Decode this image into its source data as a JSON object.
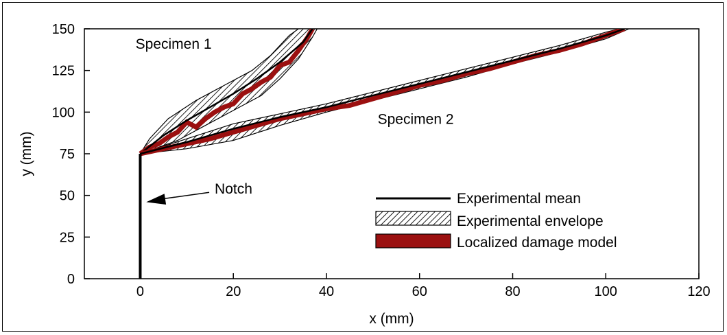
{
  "chart_data": {
    "type": "line",
    "xlabel": "x (mm)",
    "ylabel": "y (mm)",
    "xlim": [
      -12,
      120
    ],
    "ylim": [
      0,
      150
    ],
    "x_ticks": [
      0,
      20,
      40,
      60,
      80,
      100,
      120
    ],
    "y_ticks": [
      0,
      25,
      50,
      75,
      100,
      125,
      150
    ],
    "grid": false,
    "legend_position": "bottom-right",
    "legend": [
      {
        "label": "Experimental mean",
        "style": "line",
        "color": "#000000"
      },
      {
        "label": "Experimental envelope",
        "style": "hatch",
        "color": "#000000"
      },
      {
        "label": "Localized damage model",
        "style": "fill",
        "color": "#9b1010"
      }
    ],
    "annotations": [
      {
        "text": "Specimen 1",
        "at": [
          -1,
          138
        ]
      },
      {
        "text": "Specimen 2",
        "at": [
          51,
          93
        ]
      },
      {
        "text": "Notch",
        "at": [
          16,
          51
        ],
        "arrow_to": [
          1,
          46
        ]
      }
    ],
    "notch": {
      "x": [
        0,
        0
      ],
      "y": [
        0,
        75
      ]
    },
    "specimens": [
      {
        "name": "Specimen 1",
        "mean": {
          "x": [
            0,
            5,
            10,
            15,
            20,
            25,
            30,
            35,
            37
          ],
          "y": [
            75,
            86,
            95,
            103,
            111,
            120,
            130,
            142,
            150
          ]
        },
        "envelope_upper": {
          "x": [
            0,
            2,
            6,
            12,
            18,
            24,
            28,
            32,
            34
          ],
          "y": [
            75,
            84,
            96,
            107,
            116,
            125,
            134,
            146,
            150
          ]
        },
        "envelope_lower": {
          "x": [
            0,
            8,
            14,
            20,
            26,
            30,
            34,
            37,
            38
          ],
          "y": [
            75,
            83,
            92,
            101,
            110,
            120,
            132,
            145,
            150
          ]
        },
        "model": {
          "x": [
            0,
            2,
            4,
            6,
            8,
            10,
            12,
            14,
            16,
            18,
            20,
            22,
            24,
            26,
            28,
            30,
            32,
            34,
            36,
            37
          ],
          "y": [
            75,
            79,
            81,
            85,
            88,
            94,
            91,
            96,
            100,
            103,
            105,
            111,
            114,
            118,
            121,
            128,
            130,
            137,
            145,
            150
          ]
        }
      },
      {
        "name": "Specimen 2",
        "mean": {
          "x": [
            0,
            10,
            20,
            30,
            40,
            50,
            60,
            70,
            80,
            90,
            100,
            104
          ],
          "y": [
            75,
            82,
            90,
            97,
            103,
            110,
            117,
            124,
            131,
            138,
            146,
            150
          ]
        },
        "envelope_upper": {
          "x": [
            0,
            10,
            20,
            30,
            40,
            50,
            60,
            70,
            80,
            90,
            100,
            103
          ],
          "y": [
            75,
            84,
            93,
            99,
            105,
            112,
            119,
            126,
            133,
            140,
            148,
            150
          ]
        },
        "envelope_lower": {
          "x": [
            0,
            10,
            20,
            30,
            40,
            50,
            60,
            70,
            80,
            90,
            100,
            105
          ],
          "y": [
            75,
            78,
            83,
            92,
            100,
            107,
            114,
            121,
            129,
            136,
            144,
            150
          ]
        },
        "model": {
          "x": [
            0,
            5,
            10,
            15,
            20,
            25,
            30,
            35,
            40,
            45,
            50,
            55,
            60,
            65,
            70,
            75,
            80,
            85,
            90,
            95,
            100,
            104
          ],
          "y": [
            75,
            78,
            81,
            84,
            88,
            92,
            96,
            99,
            102,
            104,
            108,
            112,
            116,
            119,
            123,
            126,
            130,
            134,
            137,
            141,
            146,
            150
          ]
        }
      }
    ]
  }
}
